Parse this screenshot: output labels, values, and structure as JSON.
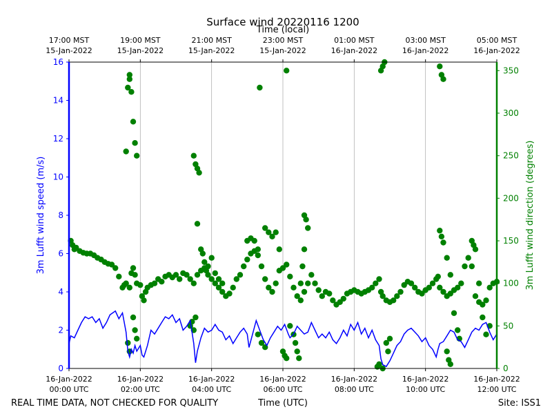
{
  "chart_data": {
    "type": "scatter",
    "title": "Surface wind 20220116 1200",
    "top_axis_label": "Time (local)",
    "xlabel": "Time (UTC)",
    "footer_left": "REAL TIME DATA, NOT CHECKED FOR QUALITY",
    "footer_right": "Site: ISS1",
    "x_unit": "hours since 16-Jan-2022 00:00 UTC",
    "xlim": [
      0,
      12
    ],
    "bottom_ticks": [
      {
        "x": 0,
        "line1": "16-Jan-2022",
        "line2": "00:00 UTC"
      },
      {
        "x": 2,
        "line1": "16-Jan-2022",
        "line2": "02:00 UTC"
      },
      {
        "x": 4,
        "line1": "16-Jan-2022",
        "line2": "04:00 UTC"
      },
      {
        "x": 6,
        "line1": "16-Jan-2022",
        "line2": "06:00 UTC"
      },
      {
        "x": 8,
        "line1": "16-Jan-2022",
        "line2": "08:00 UTC"
      },
      {
        "x": 10,
        "line1": "16-Jan-2022",
        "line2": "10:00 UTC"
      },
      {
        "x": 12,
        "line1": "16-Jan-2022",
        "line2": "12:00 UTC"
      }
    ],
    "top_ticks": [
      {
        "x": 0,
        "line1": "17:00 MST",
        "line2": "15-Jan-2022"
      },
      {
        "x": 2,
        "line1": "19:00 MST",
        "line2": "15-Jan-2022"
      },
      {
        "x": 4,
        "line1": "21:00 MST",
        "line2": "15-Jan-2022"
      },
      {
        "x": 6,
        "line1": "23:00 MST",
        "line2": "15-Jan-2022"
      },
      {
        "x": 8,
        "line1": "01:00 MST",
        "line2": "16-Jan-2022"
      },
      {
        "x": 10,
        "line1": "03:00 MST",
        "line2": "16-Jan-2022"
      },
      {
        "x": 12,
        "line1": "05:00 MST",
        "line2": "16-Jan-2022"
      }
    ],
    "left_axis": {
      "label": "3m Lufft wind speed (m/s)",
      "lim": [
        0,
        16
      ],
      "ticks": [
        0,
        2,
        4,
        6,
        8,
        10,
        12,
        14,
        16
      ],
      "color": "#0000ff"
    },
    "right_axis": {
      "label": "3m Lufft wind direction (degrees)",
      "lim": [
        0,
        360
      ],
      "ticks": [
        0,
        50,
        100,
        150,
        200,
        250,
        300,
        350
      ],
      "color": "#008000"
    },
    "speed_series": {
      "name": "3m Lufft wind speed",
      "style": "line",
      "color": "#0000ff",
      "points": [
        [
          0,
          1.3
        ],
        [
          0.05,
          1.7
        ],
        [
          0.15,
          1.6
        ],
        [
          0.25,
          2.0
        ],
        [
          0.35,
          2.4
        ],
        [
          0.45,
          2.7
        ],
        [
          0.55,
          2.6
        ],
        [
          0.65,
          2.7
        ],
        [
          0.75,
          2.4
        ],
        [
          0.85,
          2.6
        ],
        [
          0.95,
          2.1
        ],
        [
          1.05,
          2.4
        ],
        [
          1.15,
          2.8
        ],
        [
          1.3,
          3.0
        ],
        [
          1.4,
          2.6
        ],
        [
          1.5,
          2.9
        ],
        [
          1.6,
          1.9
        ],
        [
          1.65,
          0.9
        ],
        [
          1.7,
          0.6
        ],
        [
          1.75,
          1.0
        ],
        [
          1.8,
          0.8
        ],
        [
          1.85,
          1.2
        ],
        [
          1.9,
          0.9
        ],
        [
          2.0,
          1.2
        ],
        [
          2.05,
          0.7
        ],
        [
          2.1,
          0.6
        ],
        [
          2.2,
          1.2
        ],
        [
          2.3,
          2.0
        ],
        [
          2.4,
          1.8
        ],
        [
          2.5,
          2.1
        ],
        [
          2.6,
          2.4
        ],
        [
          2.7,
          2.7
        ],
        [
          2.8,
          2.6
        ],
        [
          2.9,
          2.8
        ],
        [
          3.0,
          2.4
        ],
        [
          3.1,
          2.6
        ],
        [
          3.2,
          2.0
        ],
        [
          3.3,
          2.2
        ],
        [
          3.4,
          2.5
        ],
        [
          3.5,
          1.3
        ],
        [
          3.55,
          0.3
        ],
        [
          3.6,
          0.9
        ],
        [
          3.7,
          1.6
        ],
        [
          3.8,
          2.1
        ],
        [
          3.9,
          1.9
        ],
        [
          4.0,
          2.0
        ],
        [
          4.1,
          2.3
        ],
        [
          4.2,
          2.0
        ],
        [
          4.3,
          1.9
        ],
        [
          4.4,
          1.5
        ],
        [
          4.5,
          1.7
        ],
        [
          4.6,
          1.3
        ],
        [
          4.7,
          1.6
        ],
        [
          4.8,
          1.9
        ],
        [
          4.9,
          2.1
        ],
        [
          5.0,
          1.8
        ],
        [
          5.05,
          1.1
        ],
        [
          5.15,
          1.8
        ],
        [
          5.25,
          2.5
        ],
        [
          5.35,
          2.0
        ],
        [
          5.45,
          1.5
        ],
        [
          5.55,
          1.2
        ],
        [
          5.65,
          1.6
        ],
        [
          5.75,
          1.9
        ],
        [
          5.85,
          2.2
        ],
        [
          5.95,
          2.0
        ],
        [
          6.05,
          2.3
        ],
        [
          6.15,
          1.8
        ],
        [
          6.2,
          1.6
        ],
        [
          6.3,
          1.8
        ],
        [
          6.4,
          2.2
        ],
        [
          6.5,
          2.0
        ],
        [
          6.6,
          1.8
        ],
        [
          6.7,
          1.9
        ],
        [
          6.8,
          2.4
        ],
        [
          6.9,
          2.0
        ],
        [
          7.0,
          1.6
        ],
        [
          7.1,
          1.8
        ],
        [
          7.2,
          1.6
        ],
        [
          7.3,
          1.9
        ],
        [
          7.4,
          1.5
        ],
        [
          7.5,
          1.3
        ],
        [
          7.6,
          1.6
        ],
        [
          7.7,
          2.0
        ],
        [
          7.8,
          1.7
        ],
        [
          7.9,
          2.3
        ],
        [
          8.0,
          2.0
        ],
        [
          8.1,
          2.4
        ],
        [
          8.2,
          1.8
        ],
        [
          8.3,
          2.1
        ],
        [
          8.4,
          1.6
        ],
        [
          8.5,
          2.0
        ],
        [
          8.6,
          1.5
        ],
        [
          8.7,
          1.2
        ],
        [
          8.75,
          0.5
        ],
        [
          8.8,
          0.2
        ],
        [
          8.9,
          0.1
        ],
        [
          9.0,
          0.4
        ],
        [
          9.1,
          0.8
        ],
        [
          9.2,
          1.2
        ],
        [
          9.3,
          1.4
        ],
        [
          9.4,
          1.8
        ],
        [
          9.5,
          2.0
        ],
        [
          9.6,
          2.1
        ],
        [
          9.7,
          1.9
        ],
        [
          9.8,
          1.7
        ],
        [
          9.9,
          1.4
        ],
        [
          10.0,
          1.6
        ],
        [
          10.1,
          1.2
        ],
        [
          10.2,
          1.0
        ],
        [
          10.3,
          0.6
        ],
        [
          10.35,
          1.0
        ],
        [
          10.4,
          1.3
        ],
        [
          10.5,
          1.4
        ],
        [
          10.6,
          1.7
        ],
        [
          10.7,
          2.0
        ],
        [
          10.8,
          1.9
        ],
        [
          10.9,
          1.5
        ],
        [
          11.0,
          1.4
        ],
        [
          11.1,
          1.1
        ],
        [
          11.2,
          1.5
        ],
        [
          11.3,
          1.9
        ],
        [
          11.4,
          2.1
        ],
        [
          11.5,
          2.0
        ],
        [
          11.6,
          2.3
        ],
        [
          11.7,
          2.4
        ],
        [
          11.8,
          1.9
        ],
        [
          11.9,
          1.5
        ],
        [
          12.0,
          1.8
        ]
      ]
    },
    "direction_series": {
      "name": "3m Lufft wind direction",
      "style": "markers",
      "color": "#008000",
      "points": [
        [
          0.05,
          150
        ],
        [
          0.1,
          145
        ],
        [
          0.15,
          140
        ],
        [
          0.2,
          142
        ],
        [
          0.3,
          138
        ],
        [
          0.4,
          136
        ],
        [
          0.5,
          135
        ],
        [
          0.6,
          135
        ],
        [
          0.7,
          133
        ],
        [
          0.8,
          130
        ],
        [
          0.9,
          128
        ],
        [
          1.0,
          125
        ],
        [
          1.1,
          123
        ],
        [
          1.2,
          122
        ],
        [
          1.3,
          118
        ],
        [
          1.4,
          108
        ],
        [
          1.5,
          95
        ],
        [
          1.55,
          98
        ],
        [
          1.6,
          100
        ],
        [
          1.7,
          95
        ],
        [
          1.75,
          112
        ],
        [
          1.8,
          118
        ],
        [
          1.85,
          110
        ],
        [
          1.9,
          100
        ],
        [
          2.0,
          98
        ],
        [
          2.05,
          85
        ],
        [
          2.1,
          80
        ],
        [
          2.15,
          90
        ],
        [
          2.2,
          95
        ],
        [
          2.3,
          98
        ],
        [
          2.4,
          100
        ],
        [
          2.5,
          105
        ],
        [
          2.6,
          102
        ],
        [
          2.7,
          108
        ],
        [
          2.8,
          110
        ],
        [
          2.9,
          107
        ],
        [
          3.0,
          110
        ],
        [
          3.1,
          105
        ],
        [
          3.2,
          112
        ],
        [
          3.3,
          110
        ],
        [
          3.4,
          105
        ],
        [
          3.5,
          100
        ],
        [
          3.6,
          110
        ],
        [
          3.7,
          115
        ],
        [
          3.8,
          118
        ],
        [
          3.9,
          110
        ],
        [
          4.0,
          105
        ],
        [
          4.1,
          100
        ],
        [
          4.2,
          95
        ],
        [
          4.3,
          90
        ],
        [
          4.4,
          85
        ],
        [
          4.5,
          88
        ],
        [
          4.6,
          95
        ],
        [
          4.7,
          105
        ],
        [
          4.8,
          110
        ],
        [
          4.9,
          120
        ],
        [
          5.0,
          128
        ],
        [
          5.1,
          135
        ],
        [
          5.2,
          138
        ],
        [
          5.3,
          133
        ],
        [
          5.4,
          120
        ],
        [
          5.5,
          105
        ],
        [
          5.6,
          95
        ],
        [
          5.7,
          90
        ],
        [
          5.8,
          100
        ],
        [
          5.9,
          115
        ],
        [
          6.0,
          118
        ],
        [
          6.1,
          122
        ],
        [
          6.2,
          108
        ],
        [
          6.3,
          95
        ],
        [
          6.4,
          85
        ],
        [
          6.5,
          80
        ],
        [
          6.6,
          90
        ],
        [
          6.7,
          100
        ],
        [
          6.8,
          110
        ],
        [
          6.9,
          100
        ],
        [
          7.0,
          92
        ],
        [
          7.1,
          85
        ],
        [
          7.2,
          90
        ],
        [
          7.3,
          88
        ],
        [
          7.4,
          80
        ],
        [
          7.5,
          75
        ],
        [
          7.6,
          78
        ],
        [
          7.7,
          82
        ],
        [
          7.8,
          88
        ],
        [
          7.9,
          90
        ],
        [
          8.0,
          92
        ],
        [
          8.1,
          90
        ],
        [
          8.2,
          88
        ],
        [
          8.3,
          90
        ],
        [
          8.4,
          92
        ],
        [
          8.5,
          95
        ],
        [
          8.6,
          100
        ],
        [
          8.7,
          105
        ],
        [
          8.75,
          90
        ],
        [
          8.8,
          85
        ],
        [
          8.9,
          80
        ],
        [
          9.0,
          78
        ],
        [
          9.1,
          80
        ],
        [
          9.2,
          85
        ],
        [
          9.3,
          90
        ],
        [
          9.4,
          98
        ],
        [
          9.5,
          102
        ],
        [
          9.6,
          100
        ],
        [
          9.7,
          95
        ],
        [
          9.8,
          90
        ],
        [
          9.9,
          88
        ],
        [
          10.0,
          92
        ],
        [
          10.1,
          95
        ],
        [
          10.2,
          100
        ],
        [
          10.3,
          105
        ],
        [
          10.35,
          108
        ],
        [
          10.4,
          95
        ],
        [
          10.5,
          90
        ],
        [
          10.6,
          85
        ],
        [
          10.7,
          88
        ],
        [
          10.8,
          92
        ],
        [
          10.9,
          95
        ],
        [
          11.0,
          100
        ],
        [
          11.1,
          120
        ],
        [
          11.2,
          130
        ],
        [
          11.3,
          120
        ],
        [
          11.4,
          85
        ],
        [
          11.5,
          78
        ],
        [
          11.6,
          75
        ],
        [
          11.7,
          80
        ],
        [
          11.8,
          95
        ],
        [
          11.9,
          100
        ],
        [
          12.0,
          102
        ],
        [
          1.65,
          330
        ],
        [
          1.7,
          345
        ],
        [
          1.75,
          325
        ],
        [
          1.7,
          340
        ],
        [
          1.8,
          290
        ],
        [
          1.85,
          265
        ],
        [
          1.9,
          250
        ],
        [
          1.6,
          255
        ],
        [
          1.8,
          60
        ],
        [
          1.85,
          45
        ],
        [
          1.9,
          35
        ],
        [
          1.65,
          30
        ],
        [
          1.7,
          20
        ],
        [
          3.4,
          50
        ],
        [
          3.45,
          55
        ],
        [
          3.5,
          45
        ],
        [
          3.55,
          60
        ],
        [
          3.5,
          250
        ],
        [
          3.55,
          240
        ],
        [
          3.6,
          235
        ],
        [
          3.65,
          230
        ],
        [
          3.6,
          170
        ],
        [
          3.7,
          140
        ],
        [
          3.75,
          135
        ],
        [
          3.8,
          125
        ],
        [
          3.85,
          115
        ],
        [
          3.9,
          120
        ],
        [
          4.0,
          130
        ],
        [
          4.1,
          112
        ],
        [
          4.2,
          105
        ],
        [
          4.3,
          100
        ],
        [
          5.0,
          150
        ],
        [
          5.1,
          153
        ],
        [
          5.2,
          150
        ],
        [
          5.3,
          140
        ],
        [
          5.35,
          330
        ],
        [
          5.5,
          165
        ],
        [
          5.6,
          160
        ],
        [
          5.7,
          155
        ],
        [
          5.8,
          160
        ],
        [
          5.9,
          140
        ],
        [
          5.3,
          40
        ],
        [
          5.4,
          30
        ],
        [
          5.5,
          25
        ],
        [
          6.1,
          350
        ],
        [
          6.0,
          20
        ],
        [
          6.05,
          15
        ],
        [
          6.1,
          12
        ],
        [
          6.2,
          50
        ],
        [
          6.3,
          40
        ],
        [
          6.35,
          30
        ],
        [
          6.4,
          20
        ],
        [
          6.45,
          12
        ],
        [
          6.5,
          100
        ],
        [
          6.55,
          120
        ],
        [
          6.6,
          140
        ],
        [
          6.6,
          180
        ],
        [
          6.65,
          175
        ],
        [
          6.7,
          165
        ],
        [
          8.65,
          2
        ],
        [
          8.7,
          5
        ],
        [
          8.8,
          0
        ],
        [
          8.8,
          355
        ],
        [
          8.85,
          360
        ],
        [
          8.75,
          350
        ],
        [
          8.9,
          30
        ],
        [
          8.95,
          20
        ],
        [
          9.0,
          35
        ],
        [
          10.4,
          355
        ],
        [
          10.45,
          345
        ],
        [
          10.5,
          340
        ],
        [
          10.4,
          162
        ],
        [
          10.45,
          155
        ],
        [
          10.5,
          148
        ],
        [
          10.6,
          130
        ],
        [
          10.7,
          110
        ],
        [
          10.8,
          65
        ],
        [
          10.9,
          45
        ],
        [
          10.95,
          35
        ],
        [
          10.6,
          20
        ],
        [
          10.65,
          10
        ],
        [
          10.7,
          5
        ],
        [
          11.3,
          150
        ],
        [
          11.35,
          145
        ],
        [
          11.4,
          140
        ],
        [
          11.5,
          100
        ],
        [
          11.6,
          60
        ],
        [
          11.7,
          40
        ],
        [
          11.8,
          50
        ]
      ]
    }
  }
}
